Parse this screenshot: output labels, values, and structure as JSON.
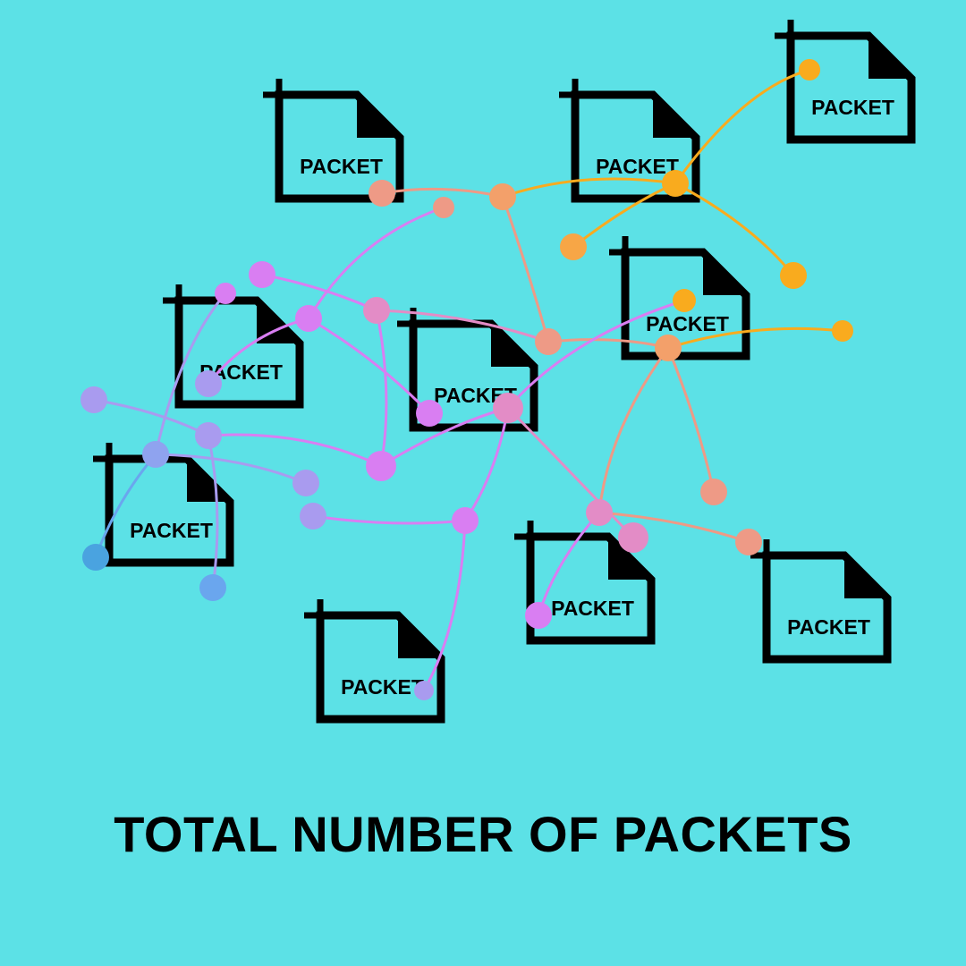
{
  "title": "TOTAL NUMBER OF PACKETS",
  "packet_label": "PACKET",
  "colors": {
    "background": "#5ce1e6",
    "ink": "#000000",
    "orange": "#f9ab1e",
    "salmon": "#ee9a86",
    "pink": "#e38cc6",
    "violet": "#d97ef2",
    "lavender": "#a99bef",
    "blue": "#6aa6ee"
  }
}
